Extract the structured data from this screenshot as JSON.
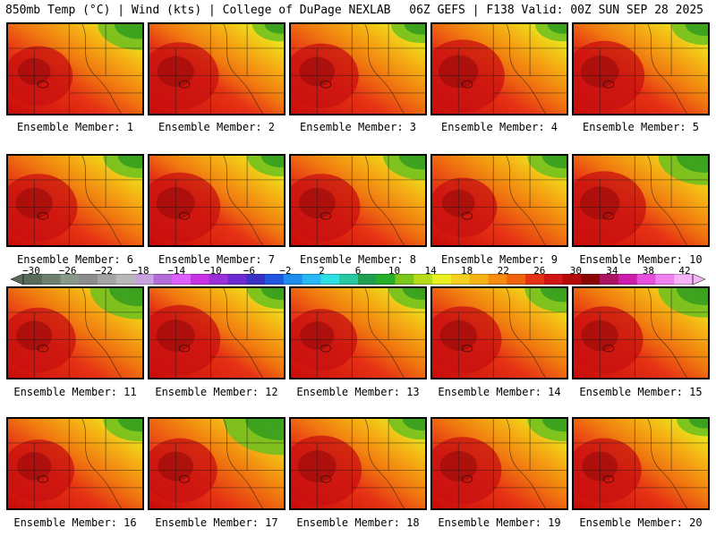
{
  "header": {
    "left": "850mb Temp (°C) | Wind (kts) | College of DuPage NEXLAB",
    "right": "06Z GEFS | F138 Valid: 00Z SUN SEP 28 2025"
  },
  "panel_label_prefix": "Ensemble Member:",
  "panels": [
    {
      "member": "1",
      "warm": 0.6,
      "cool_ne": 0.45,
      "hot_sw": 0.55
    },
    {
      "member": "2",
      "warm": 0.7,
      "cool_ne": 0.2,
      "hot_sw": 0.7
    },
    {
      "member": "3",
      "warm": 0.55,
      "cool_ne": 0.25,
      "hot_sw": 0.65
    },
    {
      "member": "4",
      "warm": 0.6,
      "cool_ne": 0.2,
      "hot_sw": 0.8
    },
    {
      "member": "5",
      "warm": 0.65,
      "cool_ne": 0.3,
      "hot_sw": 0.75
    },
    {
      "member": "6",
      "warm": 0.55,
      "cool_ne": 0.35,
      "hot_sw": 0.7
    },
    {
      "member": "7",
      "warm": 0.7,
      "cool_ne": 0.3,
      "hot_sw": 0.75
    },
    {
      "member": "8",
      "warm": 0.6,
      "cool_ne": 0.4,
      "hot_sw": 0.7
    },
    {
      "member": "9",
      "warm": 0.5,
      "cool_ne": 0.35,
      "hot_sw": 0.55
    },
    {
      "member": "10",
      "warm": 0.65,
      "cool_ne": 0.55,
      "hot_sw": 0.8
    },
    {
      "member": "11",
      "warm": 0.55,
      "cool_ne": 0.6,
      "hot_sw": 0.65
    },
    {
      "member": "12",
      "warm": 0.7,
      "cool_ne": 0.3,
      "hot_sw": 0.75
    },
    {
      "member": "13",
      "warm": 0.6,
      "cool_ne": 0.3,
      "hot_sw": 0.6
    },
    {
      "member": "14",
      "warm": 0.6,
      "cool_ne": 0.4,
      "hot_sw": 0.7
    },
    {
      "member": "15",
      "warm": 0.6,
      "cool_ne": 0.55,
      "hot_sw": 0.7
    },
    {
      "member": "16",
      "warm": 0.6,
      "cool_ne": 0.35,
      "hot_sw": 0.6
    },
    {
      "member": "17",
      "warm": 0.45,
      "cool_ne": 0.75,
      "hot_sw": 0.65
    },
    {
      "member": "18",
      "warm": 0.6,
      "cool_ne": 0.3,
      "hot_sw": 0.75
    },
    {
      "member": "19",
      "warm": 0.55,
      "cool_ne": 0.35,
      "hot_sw": 0.7
    },
    {
      "member": "20",
      "warm": 0.6,
      "cool_ne": 0.2,
      "hot_sw": 0.65
    }
  ],
  "colorbar": {
    "ticks": [
      "−30",
      "−26",
      "−22",
      "−18",
      "−14",
      "−10",
      "−6",
      "−2",
      "2",
      "6",
      "10",
      "14",
      "18",
      "22",
      "26",
      "30",
      "34",
      "38",
      "42"
    ],
    "colors": [
      "#5a6a5a",
      "#6f7f6f",
      "#8a9a8a",
      "#8c8c8c",
      "#a5a5a5",
      "#b8b8b8",
      "#c9a3df",
      "#b46cd6",
      "#e060ff",
      "#c832e6",
      "#9b30d9",
      "#6e2bd1",
      "#3a32c8",
      "#2356e0",
      "#1f8cf0",
      "#28b9f5",
      "#2ee0e0",
      "#28c8a0",
      "#1ea050",
      "#26b02a",
      "#7ac81e",
      "#b8dd16",
      "#e8f01e",
      "#f5d21e",
      "#f5b414",
      "#f58c0f",
      "#f0640f",
      "#e63214",
      "#d21414",
      "#b40a0a",
      "#8c0505",
      "#aa1464",
      "#cc1eaa",
      "#e650dc",
      "#f082f0",
      "#f5b4f5"
    ]
  }
}
